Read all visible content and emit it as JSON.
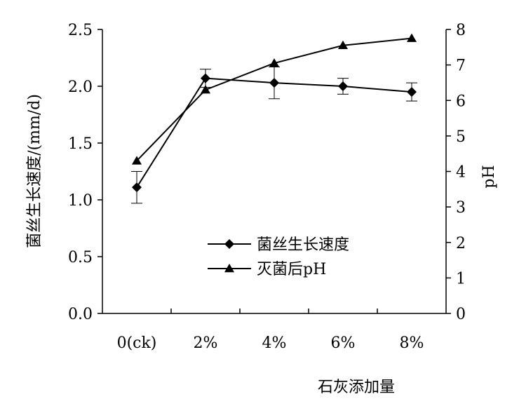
{
  "chart_data": {
    "type": "line",
    "categories": [
      "0(ck)",
      "2%",
      "4%",
      "6%",
      "8%"
    ],
    "xlabel": "石灰添加量",
    "ylabel_left": "菌丝生长速度/(mm/d)",
    "ylabel_right": "pH",
    "ylim_left": [
      0,
      2.5
    ],
    "yticks_left": [
      "0.0",
      "0.5",
      "1.0",
      "1.5",
      "2.0",
      "2.5"
    ],
    "ylim_right": [
      0,
      8
    ],
    "yticks_right": [
      "0",
      "1",
      "2",
      "3",
      "4",
      "5",
      "6",
      "7",
      "8"
    ],
    "grid": false,
    "legend_position": "center",
    "series": [
      {
        "name": "菌丝生长速度",
        "axis": "left",
        "marker": "diamond",
        "values": [
          1.11,
          2.07,
          2.03,
          2.0,
          1.95
        ],
        "error": [
          0.14,
          0.08,
          0.14,
          0.07,
          0.08
        ]
      },
      {
        "name": "灭菌后pH",
        "axis": "right",
        "marker": "triangle",
        "values": [
          4.3,
          6.3,
          7.05,
          7.55,
          7.75
        ]
      }
    ]
  }
}
